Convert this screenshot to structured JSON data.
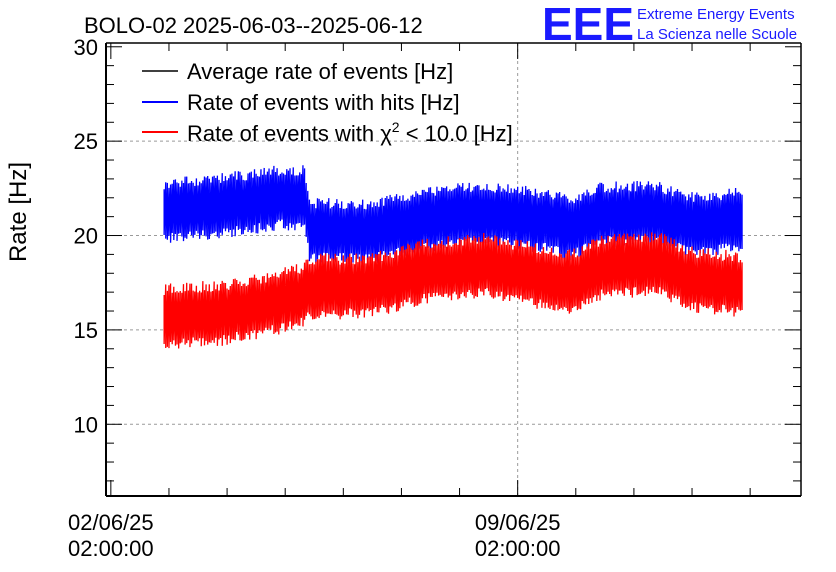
{
  "chart_data": {
    "type": "line",
    "title": "BOLO-02 2025-06-03--2025-06-12",
    "ylabel": "Rate [Hz]",
    "xlabel": "",
    "ylim": [
      6.2,
      30.2
    ],
    "y_ticks": [
      10,
      15,
      20,
      25,
      30
    ],
    "x_ticks": [
      {
        "date": "02/06/25",
        "time": "02:00:00"
      },
      {
        "date": "09/06/25",
        "time": "02:00:00"
      }
    ],
    "grid": true,
    "legend_position": "top-left",
    "series": [
      {
        "name": "Average rate of events [Hz]",
        "color": "#000000",
        "points": []
      },
      {
        "name": "Rate of events with hits [Hz]",
        "color": "#0000ff",
        "points": [
          {
            "x": "2025-06-03T00:00",
            "y": 21.3
          },
          {
            "x": "2025-06-04T00:00",
            "y": 21.6
          },
          {
            "x": "2025-06-05T00:00",
            "y": 22.0
          },
          {
            "x": "2025-06-05T10:00",
            "y": 22.0
          },
          {
            "x": "2025-06-05T12:00",
            "y": 20.3
          },
          {
            "x": "2025-06-06T12:00",
            "y": 20.2
          },
          {
            "x": "2025-06-07T12:00",
            "y": 20.8
          },
          {
            "x": "2025-06-08T12:00",
            "y": 21.2
          },
          {
            "x": "2025-06-09T12:00",
            "y": 20.8
          },
          {
            "x": "2025-06-10T00:00",
            "y": 20.4
          },
          {
            "x": "2025-06-10T12:00",
            "y": 21.1
          },
          {
            "x": "2025-06-11T12:00",
            "y": 21.2
          },
          {
            "x": "2025-06-12T00:00",
            "y": 20.6
          },
          {
            "x": "2025-06-12T23:00",
            "y": 20.8
          }
        ]
      },
      {
        "name": "Rate of events with χ² < 10.0 [Hz]",
        "color": "#ff0000",
        "points": [
          {
            "x": "2025-06-03T00:00",
            "y": 15.7
          },
          {
            "x": "2025-06-04T00:00",
            "y": 15.9
          },
          {
            "x": "2025-06-05T00:00",
            "y": 16.5
          },
          {
            "x": "2025-06-05T10:00",
            "y": 16.9
          },
          {
            "x": "2025-06-05T12:00",
            "y": 17.3
          },
          {
            "x": "2025-06-06T12:00",
            "y": 17.3
          },
          {
            "x": "2025-06-07T12:00",
            "y": 18.1
          },
          {
            "x": "2025-06-08T12:00",
            "y": 18.4
          },
          {
            "x": "2025-06-09T12:00",
            "y": 17.8
          },
          {
            "x": "2025-06-10T00:00",
            "y": 17.5
          },
          {
            "x": "2025-06-10T12:00",
            "y": 18.3
          },
          {
            "x": "2025-06-11T12:00",
            "y": 18.5
          },
          {
            "x": "2025-06-12T00:00",
            "y": 17.7
          },
          {
            "x": "2025-06-12T23:00",
            "y": 17.4
          }
        ]
      }
    ]
  },
  "legend": {
    "entry1": "Average rate of events [Hz]",
    "entry2": "Rate of events with hits [Hz]",
    "entry3_prefix": "Rate of events with ",
    "entry3_chi": "χ",
    "entry3_sup": "2",
    "entry3_suffix": " < 10.0 [Hz]"
  },
  "logo": {
    "letters": "EEE",
    "line1": "Extreme Energy Events",
    "line2": "La Scienza nelle Scuole",
    "color": "#1a1aff"
  }
}
